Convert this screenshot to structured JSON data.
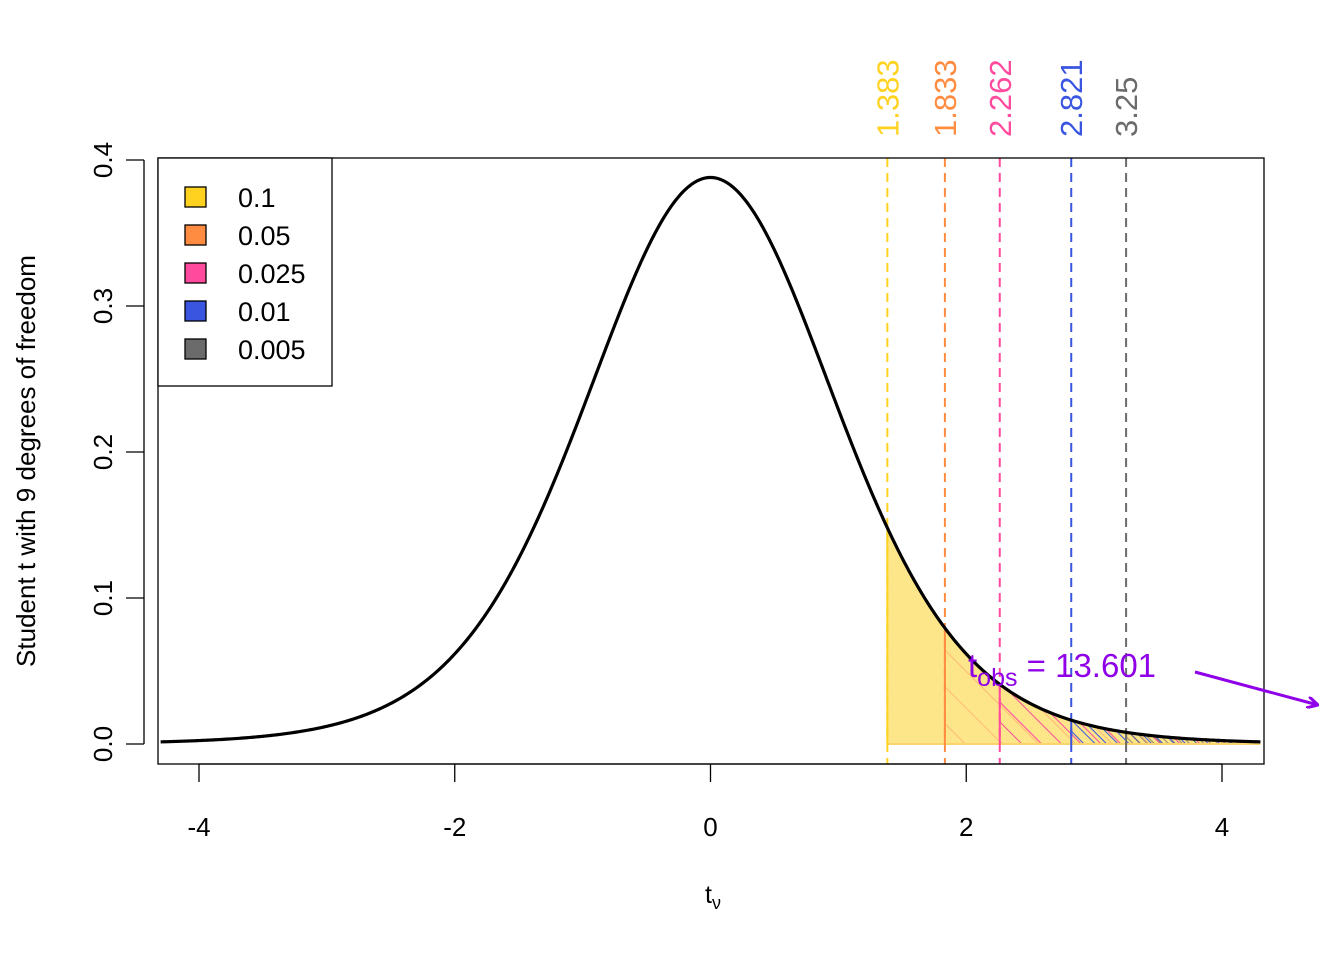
{
  "chart_data": {
    "type": "area",
    "distribution": "Student t",
    "degrees_of_freedom": 9,
    "xlabel_main": "t",
    "xlabel_sub": "ν",
    "ylabel": "Student t with 9 degrees of freedom",
    "xlim": [
      -4.3,
      4.3
    ],
    "ylim": [
      0,
      0.4
    ],
    "x_ticks": [
      -4,
      -2,
      0,
      2,
      4
    ],
    "x_tick_labels": [
      "-4",
      "-2",
      "0",
      "2",
      "4"
    ],
    "y_ticks": [
      0,
      0.1,
      0.2,
      0.3,
      0.4
    ],
    "y_tick_labels": [
      "0.0",
      "0.1",
      "0.2",
      "0.3",
      "0.4"
    ],
    "grid": false,
    "legend_position": "top-left",
    "critical_values": [
      {
        "alpha_label": "0.1",
        "t": 1.383,
        "t_label": "1.383",
        "color": "#FFD21F"
      },
      {
        "alpha_label": "0.05",
        "t": 1.833,
        "t_label": "1.833",
        "color": "#FF8C40"
      },
      {
        "alpha_label": "0.025",
        "t": 2.262,
        "t_label": "2.262",
        "color": "#FF4A9E"
      },
      {
        "alpha_label": "0.01",
        "t": 2.821,
        "t_label": "2.821",
        "color": "#3A55E0"
      },
      {
        "alpha_label": "0.005",
        "t": 3.25,
        "t_label": "3.25",
        "color": "#6B6B6B"
      }
    ],
    "annotation": {
      "t_main": "t",
      "t_sub": "obs",
      "text": " = 13.601",
      "value": 13.601,
      "color": "#8F00E8"
    }
  }
}
